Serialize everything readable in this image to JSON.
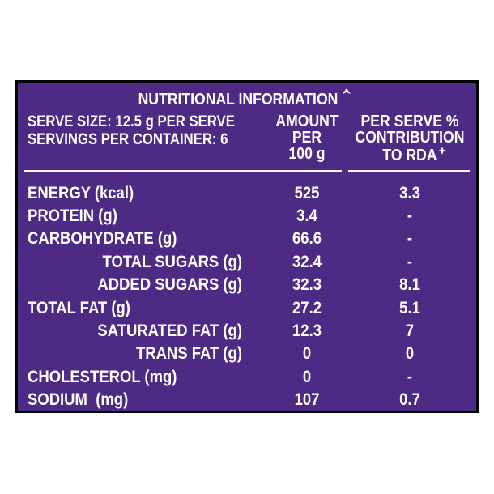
{
  "title": "NUTRITIONAL INFORMATION",
  "serve_size": "SERVE SIZE: 12.5 g PER SERVE",
  "servings": "SERVINGS PER CONTAINER: 6",
  "columns": [
    {
      "lines": [
        "AMOUNT",
        "PER",
        "100 g"
      ]
    },
    {
      "lines": [
        "PER SERVE %",
        "CONTRIBUTION",
        "TO RDA"
      ]
    }
  ],
  "rows": [
    [
      "ENERGY (kcal)",
      "525",
      "3.3"
    ],
    [
      "PROTEIN (g)",
      "3.4",
      "-"
    ],
    [
      "CARBOHYDRATE (g)",
      "66.6",
      "-"
    ],
    [
      "TOTAL SUGARS (g)",
      "32.4",
      "-"
    ],
    [
      "ADDED SUGARS (g)",
      "32.3",
      "8.1"
    ],
    [
      "TOTAL FAT (g)",
      "27.2",
      "5.1"
    ],
    [
      "SATURATED FAT (g)",
      "12.3",
      "7"
    ],
    [
      "TRANS FAT (g)",
      "0",
      "0"
    ],
    [
      "CHOLESTEROL (mg)",
      "0",
      "-"
    ],
    [
      "SODIUM  (mg)",
      "107",
      "0.7"
    ]
  ]
}
